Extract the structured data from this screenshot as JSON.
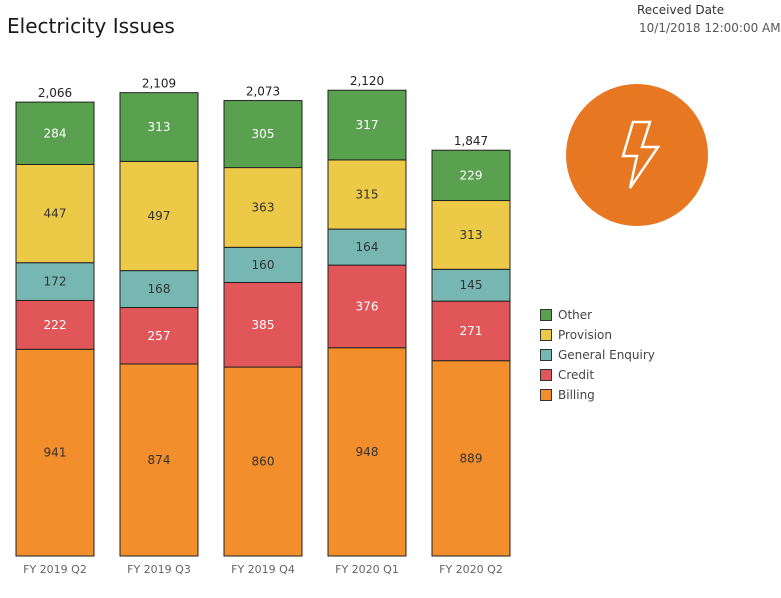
{
  "title": "Electricity Issues",
  "filter": {
    "label": "Received Date",
    "value": "10/1/2018 12:00:00 AM"
  },
  "badge": {
    "icon": "lightning-bolt-icon",
    "color": "#e87722"
  },
  "colors": {
    "Other": "#59a14f",
    "Provision": "#edc948",
    "General Enquiry": "#76b7b2",
    "Credit": "#e15759",
    "Billing": "#f28e2b"
  },
  "chart_data": {
    "type": "bar",
    "stacked": true,
    "categories": [
      "FY 2019 Q2",
      "FY 2019 Q3",
      "FY 2019 Q4",
      "FY 2020 Q1",
      "FY 2020 Q2"
    ],
    "totals": [
      "2,066",
      "2,109",
      "2,073",
      "2,120",
      "1,847"
    ],
    "series": [
      {
        "name": "Billing",
        "values": [
          941,
          874,
          860,
          948,
          889
        ]
      },
      {
        "name": "Credit",
        "values": [
          222,
          257,
          385,
          376,
          271
        ]
      },
      {
        "name": "General Enquiry",
        "values": [
          172,
          168,
          160,
          164,
          145
        ]
      },
      {
        "name": "Provision",
        "values": [
          447,
          497,
          363,
          315,
          313
        ]
      },
      {
        "name": "Other",
        "values": [
          284,
          313,
          305,
          317,
          229
        ]
      }
    ],
    "legend_order": [
      "Other",
      "Provision",
      "General Enquiry",
      "Credit",
      "Billing"
    ],
    "legend_position": "right",
    "ylim": [
      0,
      2120
    ],
    "grid": false
  }
}
